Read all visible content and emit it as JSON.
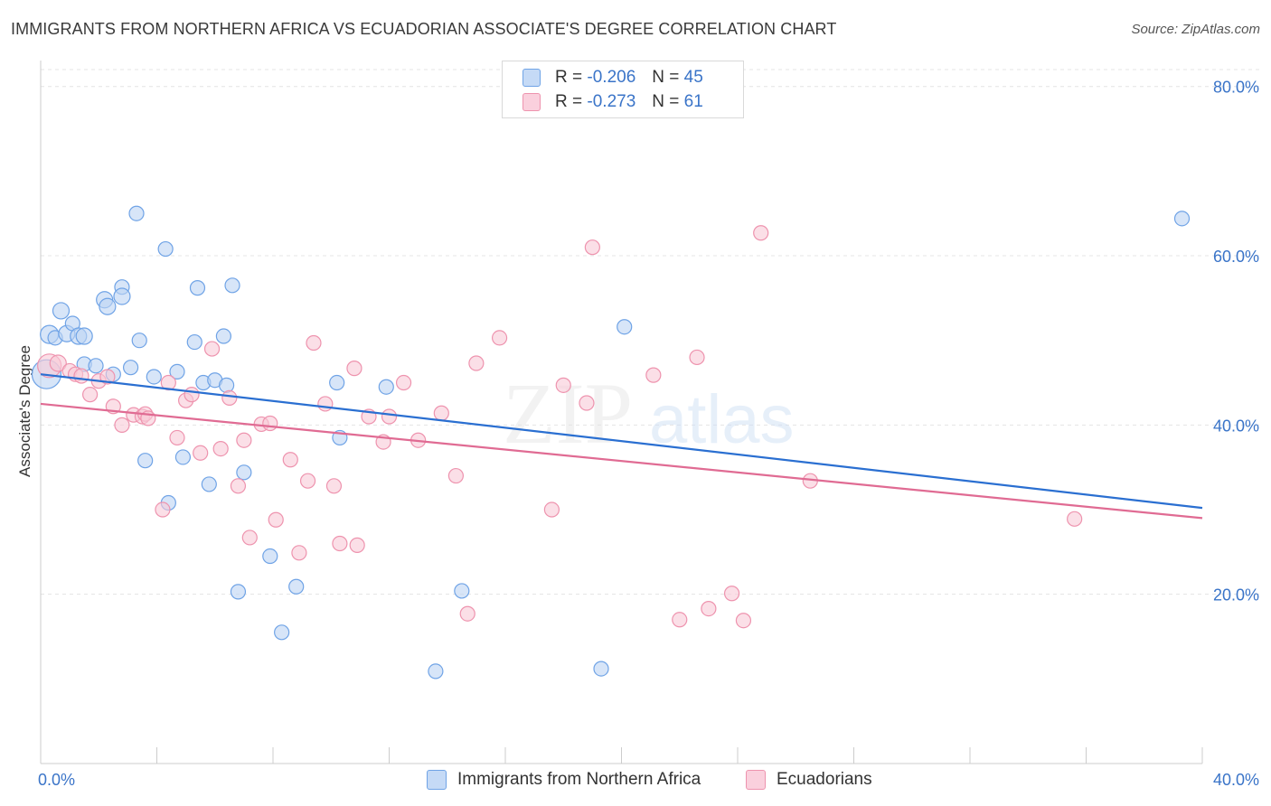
{
  "title": "IMMIGRANTS FROM NORTHERN AFRICA VS ECUADORIAN ASSOCIATE'S DEGREE CORRELATION CHART",
  "source": "Source: ZipAtlas.com",
  "watermark": {
    "zip": "ZIP",
    "atlas": "atlas"
  },
  "legend_top": {
    "r_label": "R =",
    "n_label": "N =",
    "rows": [
      {
        "r": "-0.206",
        "n": "45",
        "color": "#a9c8f0"
      },
      {
        "r": "-0.273",
        "n": "61",
        "color": "#f7bfd0"
      }
    ]
  },
  "chart_data": {
    "type": "scatter",
    "title": "IMMIGRANTS FROM NORTHERN AFRICA VS ECUADORIAN ASSOCIATE'S DEGREE CORRELATION CHART",
    "xlabel": "",
    "ylabel": "Associate's Degree",
    "xlim": [
      0,
      40
    ],
    "ylim": [
      0,
      82
    ],
    "x_tick_labels": [
      "0.0%",
      "40.0%"
    ],
    "y_ticks": [
      20,
      40,
      60,
      80
    ],
    "y_tick_labels": [
      "20.0%",
      "40.0%",
      "60.0%",
      "80.0%"
    ],
    "grid": "horizontal dashed",
    "legend_position": "bottom-center",
    "series": [
      {
        "name": "Immigrants from Northern Africa",
        "color": "#6fa3e6",
        "fill": "#bcd4f3",
        "trend": {
          "x": [
            0,
            40
          ],
          "y": [
            46.0,
            30.2
          ],
          "color": "#2a6fd1"
        },
        "points": [
          [
            0.2,
            46.0,
            16
          ],
          [
            0.3,
            50.7,
            10
          ],
          [
            0.5,
            50.3,
            8
          ],
          [
            0.7,
            53.5,
            9
          ],
          [
            0.9,
            50.8,
            9
          ],
          [
            1.1,
            52.0,
            8
          ],
          [
            1.3,
            50.5,
            9
          ],
          [
            1.5,
            50.5,
            9
          ],
          [
            1.5,
            47.2,
            8
          ],
          [
            1.9,
            47.0,
            8
          ],
          [
            2.2,
            54.8,
            9
          ],
          [
            2.3,
            54.0,
            9
          ],
          [
            2.5,
            46.0,
            8
          ],
          [
            2.8,
            56.3,
            8
          ],
          [
            2.8,
            55.2,
            9
          ],
          [
            3.1,
            46.8,
            8
          ],
          [
            3.3,
            65.0,
            8
          ],
          [
            3.4,
            50.0,
            8
          ],
          [
            3.6,
            35.8,
            8
          ],
          [
            3.9,
            45.7,
            8
          ],
          [
            4.3,
            60.8,
            8
          ],
          [
            4.4,
            30.8,
            8
          ],
          [
            4.7,
            46.3,
            8
          ],
          [
            4.9,
            36.2,
            8
          ],
          [
            5.3,
            49.8,
            8
          ],
          [
            5.4,
            56.2,
            8
          ],
          [
            5.6,
            45.0,
            8
          ],
          [
            5.8,
            33.0,
            8
          ],
          [
            6.0,
            45.3,
            8
          ],
          [
            6.3,
            50.5,
            8
          ],
          [
            6.4,
            44.7,
            8
          ],
          [
            6.6,
            56.5,
            8
          ],
          [
            6.8,
            20.3,
            8
          ],
          [
            7.0,
            34.4,
            8
          ],
          [
            7.9,
            24.5,
            8
          ],
          [
            8.3,
            15.5,
            8
          ],
          [
            8.8,
            20.9,
            8
          ],
          [
            10.2,
            45.0,
            8
          ],
          [
            10.3,
            38.5,
            8
          ],
          [
            11.9,
            44.5,
            8
          ],
          [
            13.6,
            10.9,
            8
          ],
          [
            14.5,
            20.4,
            8
          ],
          [
            19.3,
            11.2,
            8
          ],
          [
            20.1,
            51.6,
            8
          ],
          [
            39.3,
            64.4,
            8
          ]
        ]
      },
      {
        "name": "Ecuadorians",
        "color": "#ee93ae",
        "fill": "#f8c9d7",
        "trend": {
          "x": [
            0,
            40
          ],
          "y": [
            42.5,
            29.0
          ],
          "color": "#e06b93"
        },
        "points": [
          [
            0.3,
            47.0,
            13
          ],
          [
            0.6,
            47.3,
            9
          ],
          [
            1.0,
            46.4,
            8
          ],
          [
            1.2,
            46.0,
            8
          ],
          [
            1.4,
            45.8,
            8
          ],
          [
            1.7,
            43.6,
            8
          ],
          [
            2.0,
            45.2,
            8
          ],
          [
            2.3,
            45.7,
            8
          ],
          [
            2.5,
            42.2,
            8
          ],
          [
            2.8,
            40.0,
            8
          ],
          [
            3.2,
            41.2,
            8
          ],
          [
            3.5,
            41.0,
            8
          ],
          [
            3.6,
            41.3,
            8
          ],
          [
            3.7,
            40.8,
            8
          ],
          [
            4.2,
            30.0,
            8
          ],
          [
            4.4,
            45.0,
            8
          ],
          [
            4.7,
            38.5,
            8
          ],
          [
            5.0,
            42.9,
            8
          ],
          [
            5.2,
            43.6,
            8
          ],
          [
            5.5,
            36.7,
            8
          ],
          [
            5.9,
            49.0,
            8
          ],
          [
            6.2,
            37.2,
            8
          ],
          [
            6.5,
            43.2,
            8
          ],
          [
            6.8,
            32.8,
            8
          ],
          [
            7.0,
            38.2,
            8
          ],
          [
            7.2,
            26.7,
            8
          ],
          [
            7.6,
            40.1,
            8
          ],
          [
            7.9,
            40.2,
            8
          ],
          [
            8.1,
            28.8,
            8
          ],
          [
            8.6,
            35.9,
            8
          ],
          [
            8.9,
            24.9,
            8
          ],
          [
            9.2,
            33.4,
            8
          ],
          [
            9.4,
            49.7,
            8
          ],
          [
            9.8,
            42.5,
            8
          ],
          [
            10.1,
            32.8,
            8
          ],
          [
            10.3,
            26.0,
            8
          ],
          [
            10.8,
            46.7,
            8
          ],
          [
            10.9,
            25.8,
            8
          ],
          [
            11.3,
            41.0,
            8
          ],
          [
            11.8,
            38.0,
            8
          ],
          [
            12.0,
            41.0,
            8
          ],
          [
            12.5,
            45.0,
            8
          ],
          [
            13.0,
            38.2,
            8
          ],
          [
            13.8,
            41.4,
            8
          ],
          [
            14.3,
            34.0,
            8
          ],
          [
            14.7,
            17.7,
            8
          ],
          [
            15.0,
            47.3,
            8
          ],
          [
            15.8,
            50.3,
            8
          ],
          [
            17.6,
            30.0,
            8
          ],
          [
            18.0,
            44.7,
            8
          ],
          [
            18.8,
            42.6,
            8
          ],
          [
            19.0,
            61.0,
            8
          ],
          [
            21.1,
            45.9,
            8
          ],
          [
            22.0,
            17.0,
            8
          ],
          [
            22.6,
            48.0,
            8
          ],
          [
            23.0,
            18.3,
            8
          ],
          [
            23.8,
            20.1,
            8
          ],
          [
            24.2,
            16.9,
            8
          ],
          [
            24.8,
            62.7,
            8
          ],
          [
            26.5,
            33.4,
            8
          ],
          [
            35.6,
            28.9,
            8
          ]
        ]
      }
    ]
  }
}
